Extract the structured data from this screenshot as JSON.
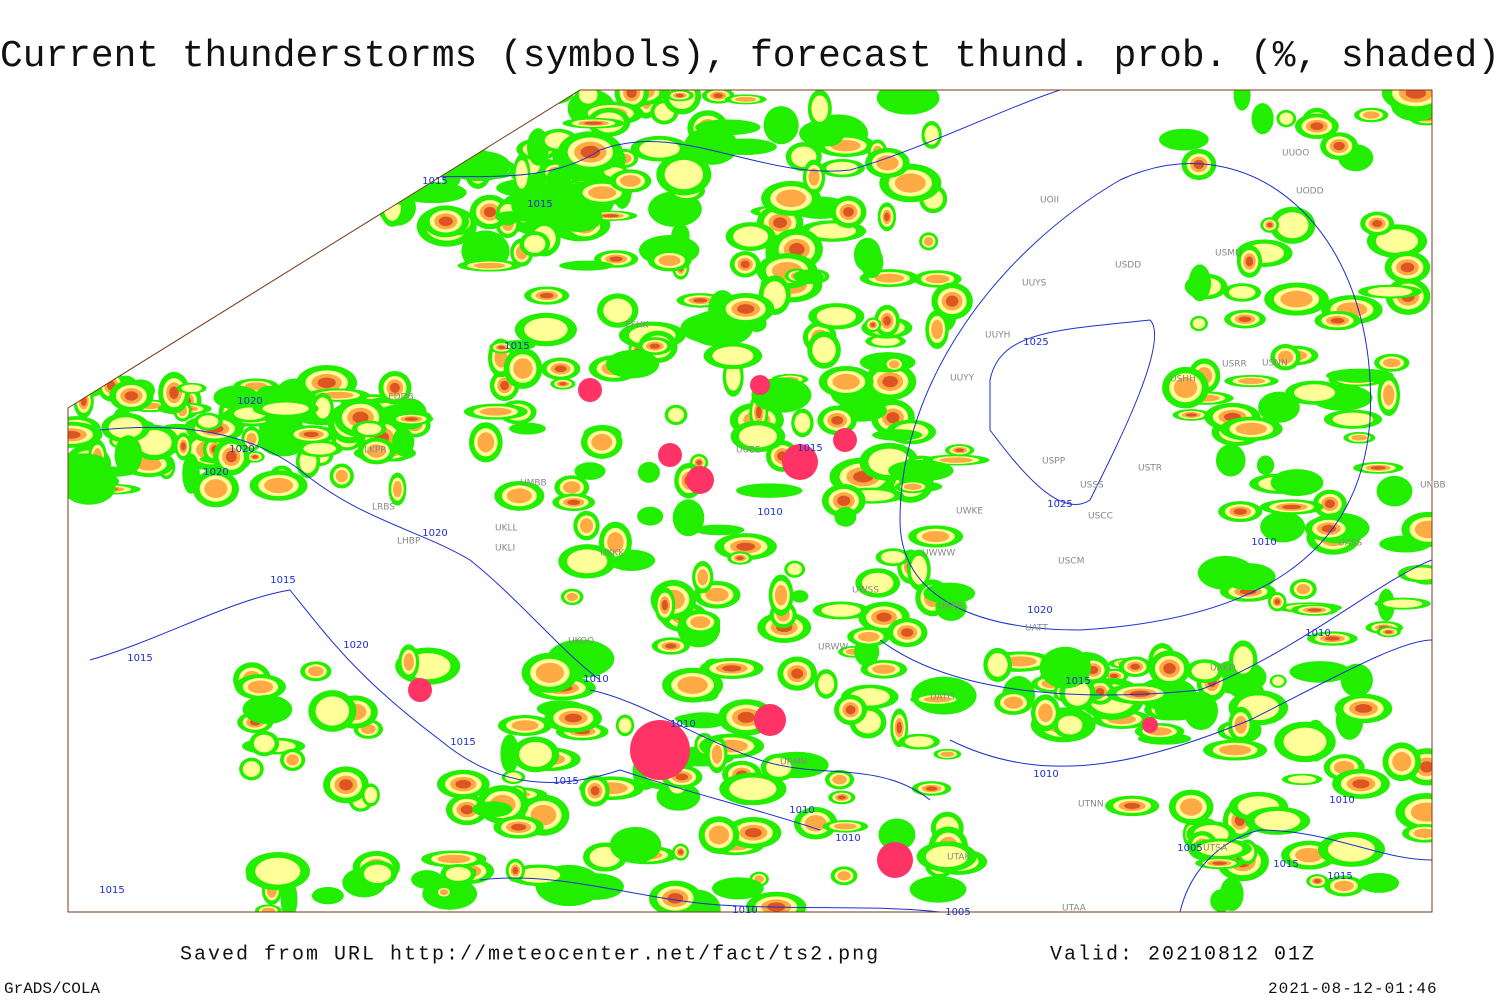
{
  "title": "Current thunderstorms (symbols), forecast thund. prob. (%, shaded)",
  "footer": {
    "source": "Saved from URL http://meteocenter.net/fact/ts2.png",
    "valid": "Valid: 20210812 01Z",
    "software": "GrADS/COLA",
    "timestamp": "2021-08-12-01:46"
  },
  "isobar_labels": [
    "1015",
    "1015",
    "1015",
    "1020",
    "1020",
    "1020",
    "1020",
    "1015",
    "1015",
    "1020",
    "1015",
    "1015",
    "1015",
    "1010",
    "1010",
    "1015",
    "1010",
    "1010",
    "1010",
    "1025",
    "1025",
    "1020",
    "1015",
    "1010",
    "1010",
    "1010",
    "1005",
    "1015",
    "1015",
    "1010",
    "1010",
    "1005"
  ],
  "station_labels": [
    "EDDB",
    "LKPR",
    "LHBP",
    "LRBS",
    "UKLL",
    "UKLI",
    "UKKK",
    "UMBB",
    "EFHK",
    "UUEE",
    "UUYY",
    "UUYH",
    "UUYS",
    "USDD",
    "USMU",
    "USRR",
    "USNN",
    "USHH",
    "USPP",
    "USSS",
    "USCC",
    "USCM",
    "USTR",
    "UWKE",
    "UWWW",
    "UWSS",
    "UATT",
    "UARR",
    "UAKD",
    "UATG",
    "UTNN",
    "UTAA",
    "UTSA",
    "UUOO",
    "UODD",
    "UOII",
    "UNBB",
    "UASS",
    "URWW",
    "URMN",
    "UTAK",
    "UKOO"
  ]
}
